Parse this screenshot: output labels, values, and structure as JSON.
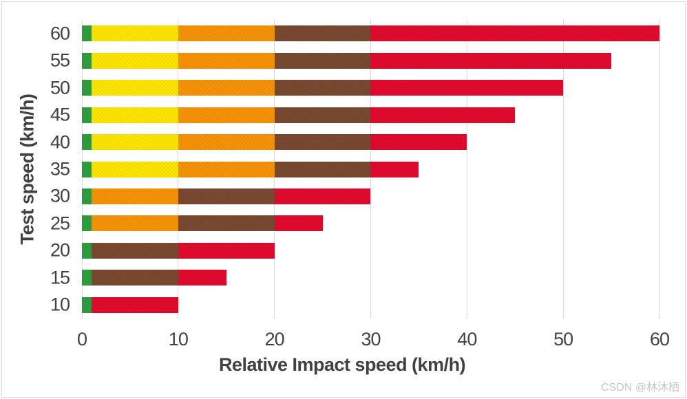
{
  "watermark": "CSDN @林沐栖",
  "axes": {
    "x_title": "Relative Impact speed (km/h)",
    "y_title": "Test speed (km/h)"
  },
  "colors": {
    "grid": "#d9d9d9",
    "tick_text": "#404247",
    "title_text": "#3f4245",
    "frame_border": "#d7d7d7",
    "watermark": "#c6c6c6"
  },
  "chart_data": {
    "type": "bar",
    "orientation": "horizontal",
    "stacked": true,
    "title": "",
    "xlabel": "Relative Impact speed (km/h)",
    "ylabel": "Test speed (km/h)",
    "xlim": [
      0,
      60
    ],
    "xticks": [
      0,
      10,
      20,
      30,
      40,
      50,
      60
    ],
    "grid": "vertical",
    "legend": "none",
    "bar_thickness_px": 23,
    "categories": [
      60,
      55,
      50,
      45,
      40,
      35,
      30,
      25,
      20,
      15,
      10
    ],
    "series": [
      {
        "name": "band-green",
        "color": "#2e9e3e",
        "values": [
          1,
          1,
          1,
          1,
          1,
          1,
          1,
          1,
          1,
          1,
          1
        ]
      },
      {
        "name": "band-yellow",
        "color": "#ffe600",
        "values": [
          9,
          9,
          9,
          9,
          9,
          9,
          0,
          0,
          0,
          0,
          0
        ]
      },
      {
        "name": "band-orange",
        "color": "#f79306",
        "values": [
          10,
          10,
          10,
          10,
          10,
          10,
          9,
          9,
          0,
          0,
          0
        ]
      },
      {
        "name": "band-brown",
        "color": "#7a4a30",
        "values": [
          10,
          10,
          10,
          10,
          10,
          10,
          10,
          10,
          9,
          9,
          0
        ]
      },
      {
        "name": "band-red",
        "color": "#e20b2e",
        "values": [
          30,
          25,
          20,
          15,
          10,
          5,
          10,
          5,
          10,
          5,
          9
        ]
      }
    ]
  }
}
